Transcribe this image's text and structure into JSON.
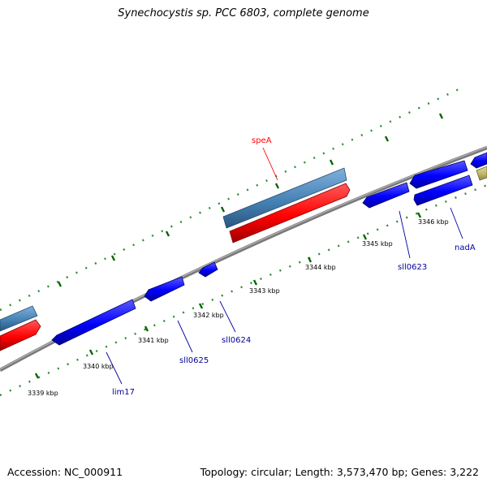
{
  "title": "Synechocystis sp. PCC 6803, complete genome",
  "footer": {
    "accession": "Accession: NC_000911",
    "summary": "Topology: circular; Length: 3,573,470 bp; Genes: 3,222"
  },
  "colors": {
    "backbone": "#808080",
    "gene_forward": "#4682b4",
    "gene_forward_alt": "#ff0000",
    "gene_reverse": "#0000ff",
    "gene_other": "#bdb76b",
    "tick": "#006400",
    "label_red": "#ff0000",
    "label_blue": "#0000a0"
  },
  "tick_labels": [
    "3339 kbp",
    "3340 kbp",
    "3341 kbp",
    "3342 kbp",
    "3343 kbp",
    "3344 kbp",
    "3345 kbp",
    "3346 kbp"
  ],
  "gene_labels": [
    {
      "name": "speA",
      "color": "red"
    },
    {
      "name": "sll0623",
      "color": "blue"
    },
    {
      "name": "nadA",
      "color": "blue"
    },
    {
      "name": "sll0624",
      "color": "blue"
    },
    {
      "name": "sll0625",
      "color": "blue"
    },
    {
      "name": "lim17",
      "color": "blue"
    }
  ]
}
